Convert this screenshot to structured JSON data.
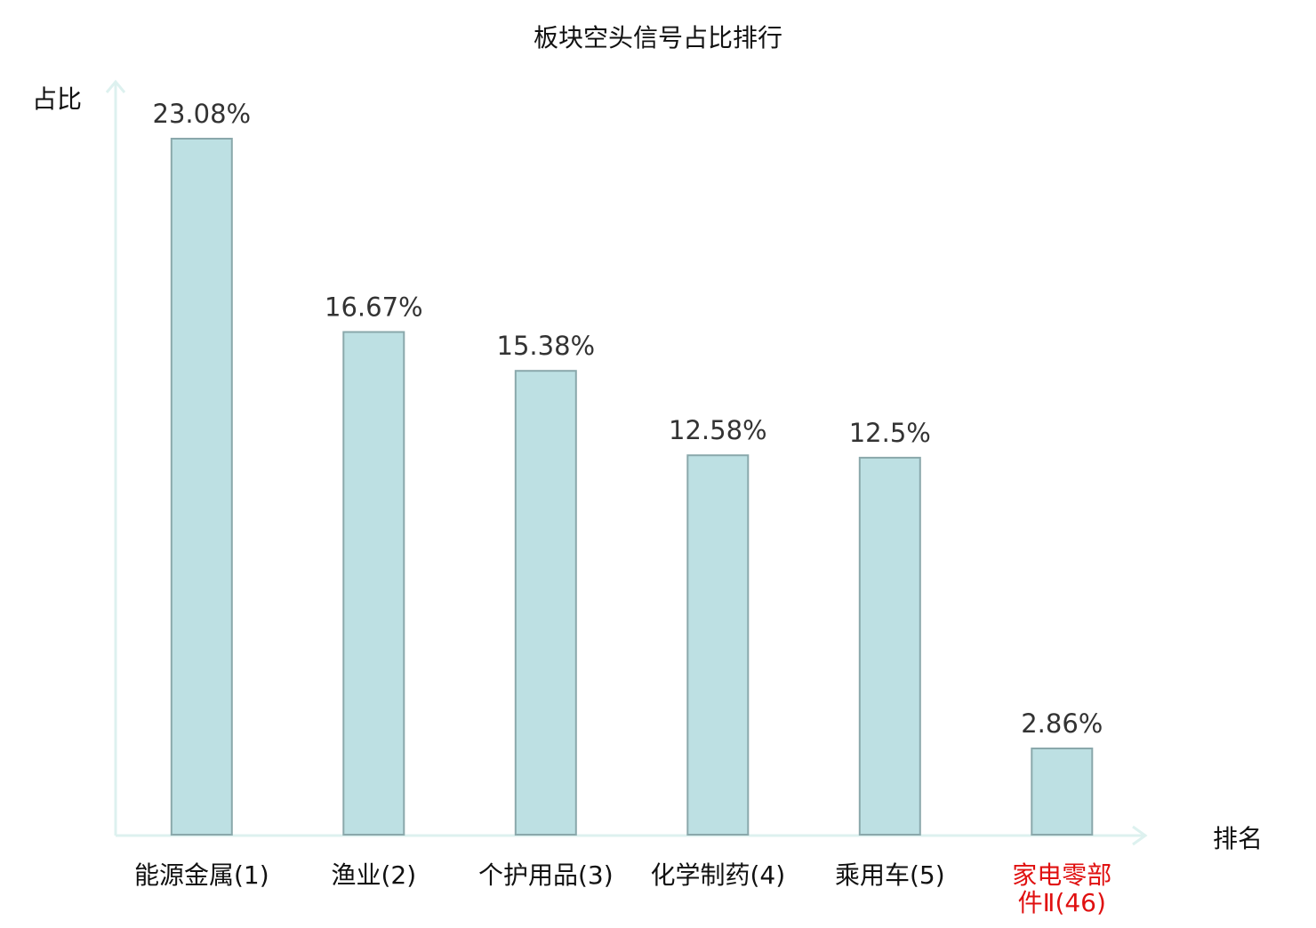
{
  "chart_data": {
    "type": "bar",
    "title": "板块空头信号占比排行",
    "xlabel": "排名",
    "ylabel": "占比",
    "categories": [
      "能源金属(1)",
      "渔业(2)",
      "个护用品(3)",
      "化学制药(4)",
      "乘用车(5)",
      "家电零部件Ⅱ(46)"
    ],
    "category_lines": [
      [
        "能源金属(1)"
      ],
      [
        "渔业(2)"
      ],
      [
        "个护用品(3)"
      ],
      [
        "化学制药(4)"
      ],
      [
        "乘用车(5)"
      ],
      [
        "家电零部",
        "件Ⅱ(46)"
      ]
    ],
    "values": [
      23.08,
      16.67,
      15.38,
      12.58,
      12.5,
      2.86
    ],
    "value_labels": [
      "23.08%",
      "16.67%",
      "15.38%",
      "12.58%",
      "12.5%",
      "2.86%"
    ],
    "highlight_index": 5,
    "ylim": [
      0,
      23.08
    ],
    "grid": false,
    "legend": "none",
    "colors": {
      "bar_fill": "#bde0e3",
      "bar_stroke": "#8aa8ab",
      "axis": "#ddf1ef",
      "text": "#111111",
      "value_text": "#333333",
      "highlight_text": "#e01010"
    }
  }
}
